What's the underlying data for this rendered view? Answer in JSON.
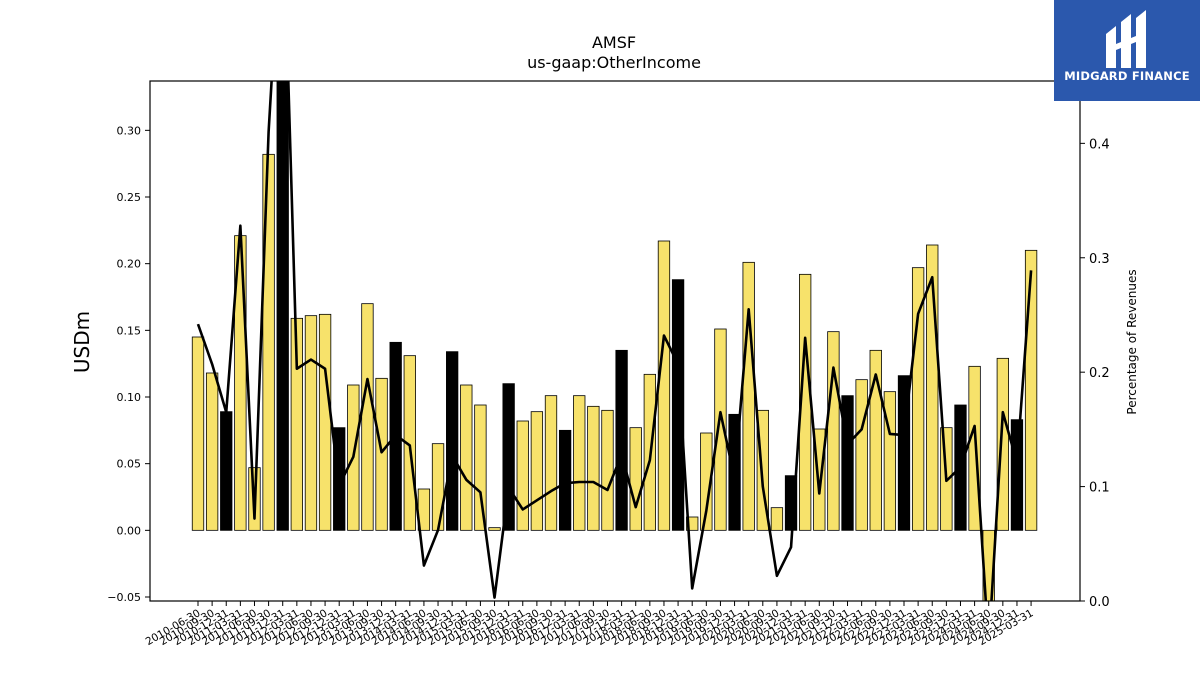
{
  "brand": {
    "name": "MIDGARD FINANCE",
    "logo_icon": "midgard-logo-icon"
  },
  "chart_data": {
    "type": "bar",
    "title": "AMSF",
    "subtitle": "us-gaap:OtherIncome",
    "ylabel": "USDm",
    "y2label": "Percentage of Revenues",
    "ylim": [
      -0.053,
      0.337
    ],
    "y2lim": [
      0.0,
      0.4545
    ],
    "yticks": [
      -0.05,
      0.0,
      0.05,
      0.1,
      0.15,
      0.2,
      0.25,
      0.3
    ],
    "ytick_labels": [
      "−0.05",
      "0.00",
      "0.05",
      "0.10",
      "0.15",
      "0.20",
      "0.25",
      "0.30"
    ],
    "y2ticks": [
      0.0,
      0.1,
      0.2,
      0.3,
      0.4
    ],
    "y2tick_labels": [
      "0.0",
      "0.1",
      "0.2",
      "0.3",
      "0.4"
    ],
    "colors": {
      "quarter_bar": "#f7e26b",
      "annual_bar": "#000000",
      "line": "#000000"
    },
    "categories": [
      "2010-06-30",
      "2010-09-30",
      "2010-12-31",
      "2011-03-31",
      "2011-06-30",
      "2011-09-30",
      "2011-12-31",
      "2012-03-31",
      "2012-06-30",
      "2012-09-30",
      "2012-12-31",
      "2013-03-31",
      "2013-06-30",
      "2013-09-30",
      "2013-12-31",
      "2014-03-31",
      "2014-06-30",
      "2014-09-30",
      "2014-12-31",
      "2015-03-31",
      "2015-06-30",
      "2015-09-30",
      "2015-12-31",
      "2016-03-31",
      "2016-06-30",
      "2016-09-30",
      "2016-12-31",
      "2017-03-31",
      "2017-06-30",
      "2017-09-30",
      "2017-12-31",
      "2018-03-31",
      "2018-06-30",
      "2018-09-30",
      "2018-12-31",
      "2019-03-31",
      "2019-06-30",
      "2019-09-30",
      "2019-12-31",
      "2020-03-31",
      "2020-06-30",
      "2020-09-30",
      "2020-12-31",
      "2021-03-31",
      "2021-06-30",
      "2021-09-30",
      "2021-12-31",
      "2022-03-31",
      "2022-06-30",
      "2022-09-30",
      "2022-12-31",
      "2023-03-31",
      "2023-06-30",
      "2023-09-30",
      "2023-12-31",
      "2024-03-31",
      "2024-06-30",
      "2024-09-30",
      "2024-12-31",
      "2025-03-31"
    ],
    "xtick_labels": [
      "2010-06-30",
      "2010-09-30",
      "2010-12-31",
      "2011-03-31",
      "2011-06-30",
      "2011-09-30",
      "2011-12-31",
      "2012-03-31",
      "2012-06-30",
      "2012-09-30",
      "2012-12-31",
      "2013-03-31",
      "2013-06-30",
      "2013-09-30",
      "2013-12-31",
      "2014-03-31",
      "2014-06-30",
      "2014-09-30",
      "2014-12-31",
      "2015-03-31",
      "2015-06-30",
      "2015-09-30",
      "2015-12-31",
      "2016-03-31",
      "2016-06-30",
      "2016-09-30",
      "2016-12-31",
      "2017-03-31",
      "2017-06-30",
      "2017-09-30",
      "2017-12-31",
      "2018-03-31",
      "2018-06-30",
      "2018-09-30",
      "2018-12-31",
      "2019-03-31",
      "2019-06-30",
      "2019-09-30",
      "2019-12-31",
      "2020-03-31",
      "2020-06-30",
      "2020-09-30",
      "2020-12-31",
      "2021-03-31",
      "2021-06-30",
      "2021-09-30",
      "2021-12-31",
      "2022-03-31",
      "2022-06-30",
      "2022-09-30",
      "2022-12-31",
      "2023-03-31",
      "2023-06-30",
      "2023-09-30",
      "2023-12-31",
      "2024-03-31",
      "2024-06-30",
      "2024-09-30",
      "2024-12-31",
      "2025-03-31"
    ],
    "values": [
      0.145,
      0.118,
      0.089,
      0.221,
      0.047,
      0.282,
      0.36,
      0.159,
      0.161,
      0.162,
      0.077,
      0.109,
      0.17,
      0.114,
      0.141,
      0.131,
      0.031,
      0.065,
      0.134,
      0.109,
      0.094,
      0.002,
      0.11,
      0.082,
      0.089,
      0.101,
      0.075,
      0.101,
      0.093,
      0.09,
      0.135,
      0.077,
      0.117,
      0.217,
      0.188,
      0.01,
      0.073,
      0.151,
      0.087,
      0.201,
      0.09,
      0.017,
      0.041,
      0.192,
      0.076,
      0.149,
      0.101,
      0.113,
      0.135,
      0.104,
      0.116,
      0.197,
      0.214,
      0.077,
      0.094,
      0.123,
      -0.06,
      0.129,
      0.083,
      0.21
    ],
    "annual": [
      false,
      false,
      true,
      false,
      false,
      false,
      true,
      false,
      false,
      false,
      true,
      false,
      false,
      false,
      true,
      false,
      false,
      false,
      true,
      false,
      false,
      false,
      true,
      false,
      false,
      false,
      true,
      false,
      false,
      false,
      true,
      false,
      false,
      false,
      true,
      false,
      false,
      false,
      true,
      false,
      false,
      false,
      true,
      false,
      false,
      false,
      true,
      false,
      false,
      false,
      true,
      false,
      false,
      false,
      true,
      false,
      false,
      false,
      true,
      false
    ],
    "pct_of_revenues": [
      0.242,
      0.207,
      0.165,
      0.328,
      0.072,
      0.41,
      0.62,
      0.203,
      0.211,
      0.203,
      0.101,
      0.126,
      0.194,
      0.13,
      0.145,
      0.136,
      0.031,
      0.062,
      0.127,
      0.106,
      0.095,
      0.003,
      0.099,
      0.08,
      0.088,
      0.096,
      0.103,
      0.104,
      0.104,
      0.097,
      0.128,
      0.082,
      0.123,
      0.232,
      0.207,
      0.011,
      0.079,
      0.165,
      0.107,
      0.255,
      0.1,
      0.022,
      0.047,
      0.23,
      0.094,
      0.204,
      0.137,
      0.15,
      0.198,
      0.146,
      0.145,
      0.251,
      0.283,
      0.105,
      0.117,
      0.153,
      -0.04,
      0.165,
      0.121,
      0.289
    ]
  }
}
